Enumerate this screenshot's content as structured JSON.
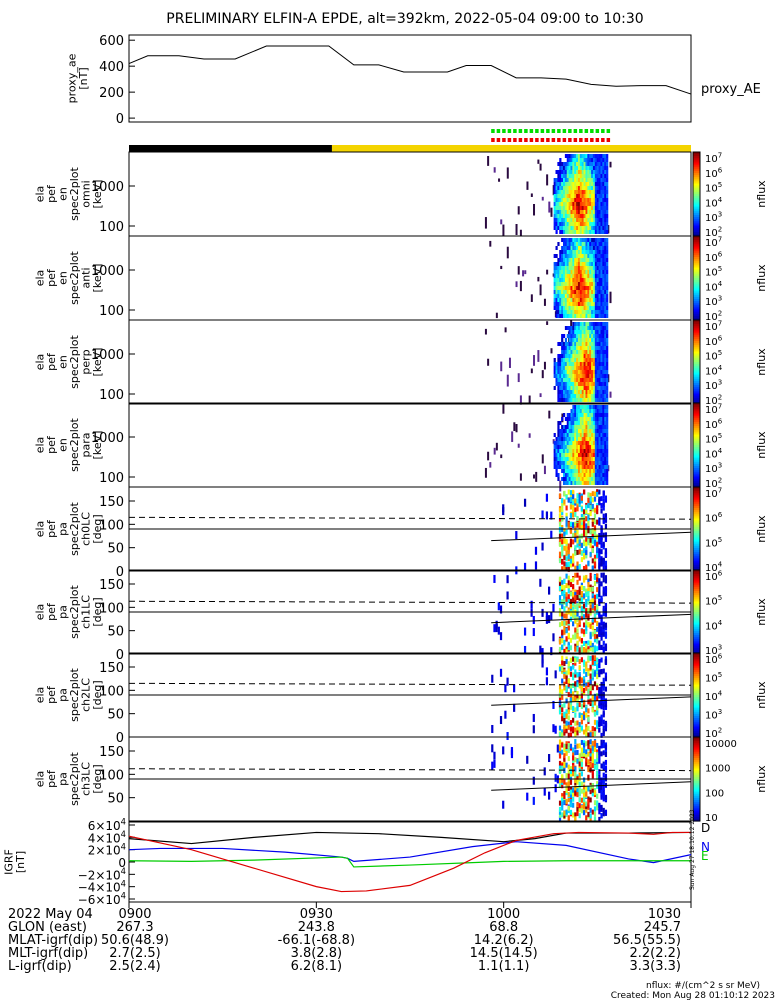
{
  "title": "PRELIMINARY ELFIN-A EPDE, alt=392km, 2022-05-04 09:00 to 10:30",
  "colors": {
    "sunlit_bar": "#f4d400",
    "shadow_bar": "#000000",
    "fast_mode": "#00dd00",
    "science_mode": "#ee0000"
  },
  "footer": {
    "units_note": "nflux: #/(cm^2 s sr MeV)",
    "created": "Created: Mon Aug 28 01:10:12 2023",
    "side_stamp": "Sun Aug 27 18:10:12 2023"
  },
  "chart_data": [
    {
      "type": "line",
      "panel": "proxy_ae",
      "ylabel_lines": [
        "proxy_ae",
        "[nT]"
      ],
      "legend": "proxy_AE",
      "yticks": [
        "600",
        "400",
        "200",
        "0"
      ],
      "ylim": [
        -30,
        640
      ],
      "x_minutes": [
        0,
        3,
        8,
        12,
        17,
        22,
        27,
        32,
        36,
        40,
        44,
        48,
        51,
        54,
        58,
        62,
        66,
        70,
        74,
        78,
        82,
        86,
        90
      ],
      "values": [
        420,
        480,
        480,
        455,
        455,
        555,
        555,
        555,
        410,
        410,
        355,
        355,
        355,
        405,
        405,
        310,
        310,
        300,
        260,
        245,
        250,
        250,
        185
      ]
    },
    {
      "type": "heatmap",
      "panel": "omni",
      "ylabel_lines": [
        "ela",
        "pef",
        "en",
        "spec2plot",
        "omni",
        "[keV]"
      ],
      "yticks": [
        "1000",
        "100"
      ],
      "colorbar": {
        "label": "nflux",
        "ticks": [
          "10^7",
          "10^6",
          "10^5",
          "10^4",
          "10^3",
          "10^2"
        ]
      },
      "active_minutes": [
        58,
        77
      ],
      "peak_minute": 72
    },
    {
      "type": "heatmap",
      "panel": "anti",
      "ylabel_lines": [
        "ela",
        "pef",
        "en",
        "spec2plot",
        "anti",
        "[keV]"
      ],
      "yticks": [
        "1000",
        "100"
      ],
      "colorbar": {
        "label": "nflux",
        "ticks": [
          "10^7",
          "10^6",
          "10^5",
          "10^4",
          "10^3",
          "10^2"
        ]
      },
      "active_minutes": [
        60,
        77
      ],
      "peak_minute": 72
    },
    {
      "type": "heatmap",
      "panel": "perp",
      "ylabel_lines": [
        "ela",
        "pef",
        "en",
        "spec2plot",
        "perp",
        "[keV]"
      ],
      "yticks": [
        "1000",
        "100"
      ],
      "colorbar": {
        "label": "nflux",
        "ticks": [
          "10^7",
          "10^6",
          "10^5",
          "10^4",
          "10^3",
          "10^2"
        ]
      },
      "active_minutes": [
        60,
        77
      ],
      "peak_minute": 73
    },
    {
      "type": "heatmap",
      "panel": "para",
      "ylabel_lines": [
        "ela",
        "pef",
        "en",
        "spec2plot",
        "para",
        "[keV]"
      ],
      "yticks": [
        "1000",
        "100"
      ],
      "colorbar": {
        "label": "nflux",
        "ticks": [
          "10^7",
          "10^6",
          "10^5",
          "10^4",
          "10^3",
          "10^2"
        ]
      },
      "active_minutes": [
        60,
        77
      ],
      "peak_minute": 73
    },
    {
      "type": "heatmap",
      "panel": "ch0LC",
      "ylabel_lines": [
        "ela",
        "pef",
        "pa",
        "spec2plot",
        "ch0LC",
        "[deg]"
      ],
      "yticks": [
        "150",
        "100",
        "50",
        "0"
      ],
      "ylim": [
        0,
        180
      ],
      "loss_cone": [
        115,
        65
      ],
      "colorbar": {
        "label": "nflux",
        "ticks": [
          "10^7",
          "10^6",
          "10^5",
          "10^4"
        ]
      },
      "active_minutes": [
        60,
        77
      ]
    },
    {
      "type": "heatmap",
      "panel": "ch1LC",
      "ylabel_lines": [
        "ela",
        "pef",
        "pa",
        "spec2plot",
        "ch1LC",
        "[deg]"
      ],
      "yticks": [
        "150",
        "100",
        "50",
        "0"
      ],
      "ylim": [
        0,
        180
      ],
      "loss_cone": [
        113,
        67
      ],
      "colorbar": {
        "label": "nflux",
        "ticks": [
          "10^6",
          "10^5",
          "10^4",
          "10^3"
        ]
      },
      "active_minutes": [
        60,
        77
      ]
    },
    {
      "type": "heatmap",
      "panel": "ch2LC",
      "ylabel_lines": [
        "ela",
        "pef",
        "pa",
        "spec2plot",
        "ch2LC",
        "[deg]"
      ],
      "yticks": [
        "150",
        "100",
        "50",
        "0"
      ],
      "ylim": [
        0,
        180
      ],
      "loss_cone": [
        115,
        68
      ],
      "colorbar": {
        "label": "nflux",
        "ticks": [
          "10^6",
          "10^5",
          "10^4",
          "10^3",
          "10^2"
        ]
      },
      "active_minutes": [
        60,
        77
      ]
    },
    {
      "type": "heatmap",
      "panel": "ch3LC",
      "ylabel_lines": [
        "ela",
        "pef",
        "pa",
        "spec2plot",
        "ch3LC",
        "[deg]"
      ],
      "yticks": [
        "150",
        "100",
        "50"
      ],
      "ylim": [
        0,
        180
      ],
      "loss_cone": [
        112,
        66
      ],
      "colorbar": {
        "label": "nflux",
        "ticks": [
          "10000",
          "1000",
          "100",
          "10"
        ]
      },
      "active_minutes": [
        60,
        77
      ]
    },
    {
      "type": "line",
      "panel": "IGRF",
      "ylabel_lines": [
        "IGRF",
        "[nT]"
      ],
      "yticks": [
        "6×10^4",
        "4×10^4",
        "2×10^4",
        "0",
        "−2×10^4",
        "−4×10^4",
        "−6×10^4"
      ],
      "ylim": [
        -65000,
        65000
      ],
      "series": [
        {
          "name": "D",
          "color": "#000000",
          "x_minutes": [
            0,
            10,
            20,
            30,
            40,
            50,
            60,
            65,
            70,
            80,
            90
          ],
          "values": [
            38000,
            30000,
            40000,
            48000,
            46000,
            40000,
            33000,
            38000,
            47000,
            47000,
            48000
          ]
        },
        {
          "name": "N",
          "color": "#0000ee",
          "x_minutes": [
            0,
            5,
            15,
            25,
            34,
            35,
            36,
            45,
            55,
            62,
            70,
            80,
            84,
            90
          ],
          "values": [
            20000,
            22000,
            22000,
            16000,
            8000,
            6000,
            1000,
            8000,
            25000,
            33000,
            27000,
            5000,
            -1000,
            12000
          ]
        },
        {
          "name": "E",
          "color": "#00cc00",
          "x_minutes": [
            0,
            10,
            20,
            34,
            35,
            36,
            45,
            55,
            60,
            70,
            90
          ],
          "values": [
            2000,
            1000,
            3000,
            8000,
            6000,
            -8000,
            -5000,
            -1000,
            1000,
            2000,
            2000
          ]
        },
        {
          "name": "",
          "color": "#dd0000",
          "x_minutes": [
            0,
            10,
            20,
            30,
            34,
            38,
            45,
            52,
            57,
            62,
            68,
            72,
            80,
            84,
            87,
            90
          ],
          "values": [
            42000,
            20000,
            -10000,
            -40000,
            -48000,
            -47000,
            -38000,
            -10000,
            15000,
            35000,
            46000,
            48000,
            47000,
            45000,
            48000,
            48000
          ]
        }
      ]
    }
  ],
  "time_axis": {
    "row_labels": [
      "2022 May 04",
      "GLON (east)",
      "MLAT-igrf(dip)",
      "MLT-igrf(dip)",
      "L-igrf(dip)"
    ],
    "ticks": [
      {
        "label": "0900",
        "values": [
          "267.3",
          "50.6(48.9)",
          "2.7(2.5)",
          "2.5(2.4)"
        ]
      },
      {
        "label": "0930",
        "values": [
          "243.8",
          "-66.1(-68.8)",
          "3.8(2.8)",
          "6.2(8.1)"
        ]
      },
      {
        "label": "1000",
        "values": [
          "68.8",
          "14.2(6.2)",
          "14.5(14.5)",
          "1.1(1.1)"
        ]
      },
      {
        "label": "1030",
        "values": [
          "245.7",
          "56.5(55.5)",
          "2.2(2.2)",
          "3.3(3.3)"
        ]
      }
    ]
  }
}
